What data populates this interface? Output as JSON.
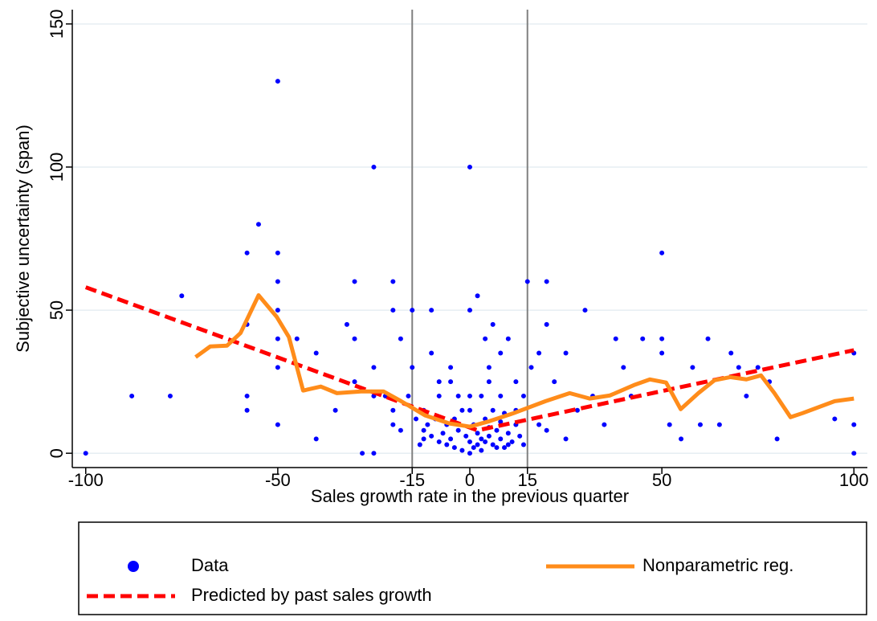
{
  "chart_data": {
    "type": "scatter",
    "x_label": "Sales growth rate in the previous quarter",
    "y_label": "Subjective uncertainty (span)",
    "xlim": [
      -103.5,
      103.5
    ],
    "ylim": [
      -5,
      155
    ],
    "xticks": [
      -100,
      -50,
      -15,
      0,
      15,
      50,
      100
    ],
    "yticks": [
      0,
      50,
      100,
      150
    ],
    "grid": true,
    "xlines": [
      -15,
      15
    ],
    "series": [
      {
        "name": "Data",
        "type": "scatter",
        "color": "#0000ff",
        "x": [
          -100,
          -50,
          0,
          -25,
          -55,
          -58,
          -50,
          50,
          -50,
          -30,
          -20,
          15,
          20,
          -75,
          -58,
          -78,
          -88,
          -58,
          -58,
          -50,
          -50,
          -50,
          -50,
          -45,
          -40,
          -40,
          -35,
          -32,
          -30,
          -30,
          -28,
          -25,
          -25,
          -22,
          -20,
          -20,
          -18,
          -15,
          -15,
          -12,
          -10,
          -10,
          -8,
          -5,
          -3,
          0,
          2,
          4,
          5,
          6,
          8,
          10,
          12,
          14,
          16,
          18,
          20,
          22,
          25,
          28,
          30,
          32,
          35,
          38,
          40,
          42,
          45,
          50,
          50,
          52,
          55,
          58,
          60,
          62,
          65,
          68,
          70,
          72,
          75,
          78,
          80,
          95,
          100,
          100,
          100,
          -14,
          -12,
          -10,
          -8,
          -6,
          -4,
          -2,
          0,
          1,
          2,
          3,
          4,
          5,
          6,
          7,
          8,
          9,
          10,
          11,
          12,
          13,
          14,
          -13,
          -11,
          -9,
          -7,
          -5,
          -3,
          -1,
          0,
          1,
          2,
          3,
          4,
          5,
          6,
          7,
          8,
          9,
          10,
          -2,
          -4,
          -6,
          0,
          3,
          -8,
          8,
          12,
          -12,
          0,
          -5,
          5,
          -16,
          18,
          20,
          -20,
          -18,
          25,
          -25
        ],
        "values": [
          0,
          130,
          100,
          100,
          80,
          70,
          70,
          70,
          60,
          60,
          60,
          60,
          60,
          55,
          45,
          20,
          20,
          20,
          15,
          10,
          50,
          40,
          30,
          40,
          35,
          5,
          15,
          45,
          40,
          25,
          0,
          0,
          30,
          20,
          50,
          10,
          40,
          50,
          30,
          5,
          50,
          35,
          25,
          30,
          20,
          50,
          55,
          40,
          30,
          45,
          35,
          40,
          25,
          20,
          30,
          35,
          45,
          25,
          35,
          15,
          50,
          20,
          10,
          40,
          30,
          20,
          40,
          40,
          35,
          10,
          5,
          30,
          10,
          40,
          10,
          35,
          30,
          20,
          30,
          25,
          5,
          12,
          0,
          10,
          35,
          12,
          8,
          6,
          4,
          3,
          2,
          1,
          0,
          2,
          3,
          5,
          4,
          6,
          3,
          8,
          5,
          2,
          7,
          4,
          10,
          6,
          3,
          3,
          10,
          12,
          7,
          5,
          8,
          6,
          4,
          10,
          7,
          1,
          12,
          9,
          15,
          2,
          11,
          14,
          3,
          15,
          12,
          10,
          20,
          20,
          20,
          20,
          15,
          15,
          15,
          25,
          25,
          20,
          10,
          8,
          15,
          8,
          5,
          20
        ]
      },
      {
        "name": "Predicted by past sales growth",
        "type": "line",
        "dash": true,
        "color": "#ff0000",
        "x": [
          -100,
          2,
          100
        ],
        "values": [
          58,
          8,
          36
        ]
      },
      {
        "name": "Nonparametric reg.",
        "type": "line",
        "dash": false,
        "color": "#ff8c1a",
        "x": [
          -71.4,
          -67.6,
          -63.2,
          -59.7,
          -55,
          -50.3,
          -47.1,
          -43.4,
          -38.8,
          -34.6,
          -28.3,
          -22.5,
          -17.9,
          -11.6,
          -5.3,
          0,
          5.1,
          11.4,
          19.7,
          26,
          31.2,
          36.5,
          42.7,
          46.9,
          51.1,
          54.9,
          59.5,
          63.7,
          67.8,
          72,
          75.8,
          79.3,
          83.5,
          86.6,
          95,
          100
        ],
        "values": [
          33.6,
          37.3,
          37.6,
          42,
          55.2,
          47.7,
          40.6,
          21.9,
          23.3,
          21,
          21.6,
          21.6,
          18.2,
          13.2,
          10.4,
          9.3,
          11.2,
          14,
          18.2,
          21,
          19.1,
          20.2,
          23.8,
          25.8,
          24.7,
          15.4,
          21,
          25.5,
          26.6,
          25.8,
          27.2,
          21,
          12.6,
          14,
          18.2,
          19.1
        ]
      }
    ]
  }
}
